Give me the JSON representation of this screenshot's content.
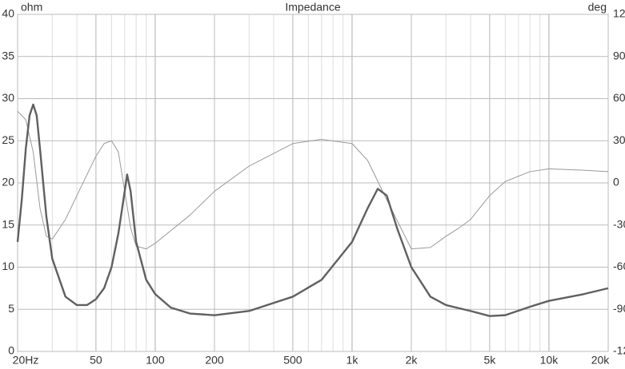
{
  "chart_data": {
    "type": "line",
    "title": "Impedance",
    "y_label": "ohm",
    "y2_label": "deg",
    "log_x": true,
    "grid": true,
    "xlim": [
      20,
      20000
    ],
    "xticks": [
      {
        "value": 20,
        "label": "20Hz"
      },
      50,
      100,
      200,
      500,
      {
        "value": 1000,
        "label": "1k"
      },
      {
        "value": 2000,
        "label": "2k"
      },
      {
        "value": 5000,
        "label": "5k"
      },
      {
        "value": 10000,
        "label": "10k"
      },
      {
        "value": 20000,
        "label": "20k"
      }
    ],
    "ylim": [
      0,
      40
    ],
    "yticks": [
      0,
      5,
      10,
      15,
      20,
      25,
      30,
      35,
      40
    ],
    "y2lim": [
      -120,
      120
    ],
    "y2ticks": [
      -120,
      -90,
      -60,
      -30,
      0,
      30,
      60,
      90,
      120
    ],
    "series": [
      {
        "name": "Impedance",
        "color": "#606060",
        "width": 2.4,
        "axis": "y",
        "x": [
          20,
          21,
          22,
          23,
          24,
          25,
          26,
          28,
          30,
          35,
          40,
          45,
          50,
          55,
          60,
          65,
          70,
          72,
          75,
          80,
          90,
          100,
          120,
          150,
          200,
          300,
          500,
          700,
          1000,
          1200,
          1350,
          1500,
          1700,
          2000,
          2500,
          3000,
          4000,
          5000,
          6000,
          8000,
          10000,
          15000,
          20000
        ],
        "values": [
          13,
          18,
          24,
          28,
          29.3,
          28,
          24,
          16,
          11,
          6.5,
          5.5,
          5.5,
          6.2,
          7.5,
          10,
          14,
          19,
          21,
          19,
          13,
          8.5,
          6.8,
          5.2,
          4.5,
          4.3,
          4.8,
          6.5,
          8.5,
          13,
          17,
          19.3,
          18.5,
          14.5,
          10,
          6.5,
          5.5,
          4.8,
          4.2,
          4.3,
          5.3,
          6,
          6.8,
          7.5
        ]
      },
      {
        "name": "Phase",
        "color": "#9a9a9a",
        "width": 1,
        "axis": "y2",
        "x": [
          20,
          22,
          24,
          26,
          28,
          30,
          35,
          40,
          50,
          55,
          60,
          65,
          70,
          75,
          80,
          90,
          100,
          150,
          200,
          300,
          500,
          700,
          1000,
          1200,
          1500,
          2000,
          2500,
          3000,
          3500,
          4000,
          5000,
          6000,
          8000,
          10000,
          15000,
          20000
        ],
        "values": [
          51,
          45,
          22,
          -18,
          -38,
          -40,
          -26,
          -9,
          19,
          28,
          30,
          22,
          -6,
          -32,
          -45,
          -47,
          -43,
          -23,
          -6,
          12,
          28,
          31,
          28,
          16,
          -12,
          -47,
          -46,
          -38,
          -32,
          -26,
          -9,
          1,
          8,
          10,
          9,
          8
        ]
      }
    ]
  }
}
